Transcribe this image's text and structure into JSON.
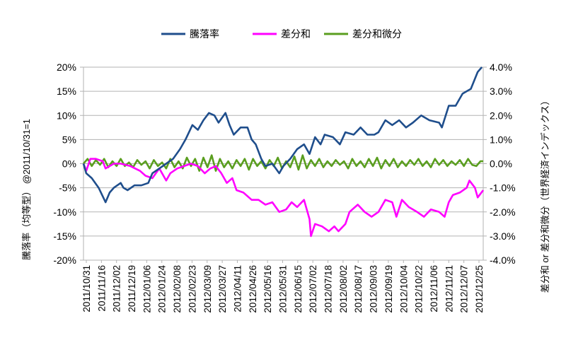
{
  "chart_data": {
    "type": "line",
    "title": "",
    "legend_position": "top",
    "grid": true,
    "xlabel": "",
    "ylabel_left": "騰落率（均等型） @2011/10/31=1",
    "ylabel_right": "差分和 or 差分和微分（世界経済インデックス）",
    "x_unit": "trading days since 2011/10/31",
    "xlim": [
      0,
      290
    ],
    "x_tick_labels": [
      "2011/10/31",
      "2011/11/16",
      "2011/12/02",
      "2011/12/19",
      "2012/01/06",
      "2012/01/24",
      "2012/02/08",
      "2012/02/23",
      "2012/03/09",
      "2012/03/27",
      "2012/04/11",
      "2012/04/26",
      "2012/05/16",
      "2012/05/31",
      "2012/06/15",
      "2012/07/02",
      "2012/07/18",
      "2012/08/02",
      "2012/08/17",
      "2012/09/03",
      "2012/09/19",
      "2012/10/04",
      "2012/10/22",
      "2012/11/06",
      "2012/11/21",
      "2012/12/07",
      "2012/12/25"
    ],
    "ylim_left": [
      -20,
      20
    ],
    "y_ticks_left": [
      "20%",
      "15%",
      "10%",
      "5%",
      "0%",
      "-5%",
      "-10%",
      "-15%",
      "-20%"
    ],
    "ylim_right": [
      -4,
      4
    ],
    "y_ticks_right": [
      "4.0%",
      "3.0%",
      "2.0%",
      "1.0%",
      "0.0%",
      "-1.0%",
      "-2.0%",
      "-3.0%",
      "-4.0%"
    ],
    "series": [
      {
        "name": "騰落率",
        "axis": "left",
        "color": "#1f4e8c",
        "points": [
          [
            0,
            0
          ],
          [
            2,
            -2
          ],
          [
            6,
            -3
          ],
          [
            11,
            -5
          ],
          [
            16,
            -8
          ],
          [
            19,
            -6
          ],
          [
            22,
            -5
          ],
          [
            27,
            -4
          ],
          [
            29,
            -5
          ],
          [
            32,
            -5.5
          ],
          [
            37,
            -4.5
          ],
          [
            42,
            -4.5
          ],
          [
            47,
            -4
          ],
          [
            50,
            -2
          ],
          [
            55,
            -1
          ],
          [
            60,
            0
          ],
          [
            65,
            1
          ],
          [
            70,
            3
          ],
          [
            74,
            5
          ],
          [
            79,
            8
          ],
          [
            83,
            7
          ],
          [
            87,
            9
          ],
          [
            91,
            10.5
          ],
          [
            95,
            10
          ],
          [
            98,
            8.5
          ],
          [
            103,
            10.5
          ],
          [
            106,
            8
          ],
          [
            109,
            6
          ],
          [
            114,
            7.5
          ],
          [
            119,
            7.5
          ],
          [
            122,
            5
          ],
          [
            125,
            4
          ],
          [
            129,
            1
          ],
          [
            132,
            -0.5
          ],
          [
            137,
            0
          ],
          [
            142,
            -2
          ],
          [
            145,
            -0.5
          ],
          [
            150,
            1
          ],
          [
            155,
            3
          ],
          [
            160,
            4
          ],
          [
            164,
            2
          ],
          [
            168,
            5.5
          ],
          [
            172,
            4
          ],
          [
            175,
            6
          ],
          [
            181,
            5.5
          ],
          [
            186,
            4
          ],
          [
            190,
            6.5
          ],
          [
            196,
            6
          ],
          [
            201,
            7.5
          ],
          [
            206,
            6
          ],
          [
            211,
            6
          ],
          [
            214,
            6.5
          ],
          [
            219,
            9
          ],
          [
            224,
            8
          ],
          [
            229,
            9
          ],
          [
            234,
            7.5
          ],
          [
            239,
            8.5
          ],
          [
            245,
            10
          ],
          [
            251,
            9
          ],
          [
            258,
            8.5
          ],
          [
            260,
            7.5
          ],
          [
            265,
            12
          ],
          [
            270,
            12
          ],
          [
            275,
            14.5
          ],
          [
            281,
            15.5
          ],
          [
            286,
            19
          ],
          [
            289,
            20
          ]
        ]
      },
      {
        "name": "差分和",
        "axis": "right",
        "color": "#ff00ff",
        "points": [
          [
            0,
            0
          ],
          [
            2,
            -0.3
          ],
          [
            5,
            0.2
          ],
          [
            9,
            0.2
          ],
          [
            14,
            0.1
          ],
          [
            16,
            -0.2
          ],
          [
            22,
            0
          ],
          [
            27,
            0
          ],
          [
            34,
            -0.1
          ],
          [
            41,
            -0.3
          ],
          [
            45,
            -0.5
          ],
          [
            50,
            -0.6
          ],
          [
            55,
            -0.2
          ],
          [
            60,
            -0.7
          ],
          [
            63,
            -0.4
          ],
          [
            68,
            -0.2
          ],
          [
            73,
            -0.1
          ],
          [
            78,
            0
          ],
          [
            83,
            -0.1
          ],
          [
            88,
            -0.4
          ],
          [
            92,
            -0.2
          ],
          [
            96,
            -0.1
          ],
          [
            100,
            -0.4
          ],
          [
            104,
            -0.8
          ],
          [
            108,
            -0.6
          ],
          [
            111,
            -1.1
          ],
          [
            116,
            -1.2
          ],
          [
            122,
            -1.5
          ],
          [
            127,
            -1.5
          ],
          [
            132,
            -1.7
          ],
          [
            137,
            -1.6
          ],
          [
            142,
            -2.0
          ],
          [
            147,
            -1.9
          ],
          [
            151,
            -1.6
          ],
          [
            155,
            -1.8
          ],
          [
            160,
            -1.5
          ],
          [
            164,
            -2.3
          ],
          [
            165,
            -3.0
          ],
          [
            168,
            -2.5
          ],
          [
            173,
            -2.6
          ],
          [
            178,
            -2.8
          ],
          [
            182,
            -2.6
          ],
          [
            185,
            -2.8
          ],
          [
            190,
            -2.5
          ],
          [
            193,
            -2.0
          ],
          [
            199,
            -1.7
          ],
          [
            204,
            -2.0
          ],
          [
            209,
            -2.2
          ],
          [
            214,
            -2.0
          ],
          [
            219,
            -1.5
          ],
          [
            224,
            -1.6
          ],
          [
            227,
            -2.2
          ],
          [
            231,
            -1.5
          ],
          [
            236,
            -1.8
          ],
          [
            242,
            -2.0
          ],
          [
            247,
            -2.2
          ],
          [
            252,
            -1.9
          ],
          [
            258,
            -2.0
          ],
          [
            262,
            -2.2
          ],
          [
            265,
            -1.6
          ],
          [
            268,
            -1.3
          ],
          [
            273,
            -1.2
          ],
          [
            278,
            -1.0
          ],
          [
            280,
            -0.7
          ],
          [
            284,
            -1.0
          ],
          [
            286,
            -1.4
          ],
          [
            290,
            -1.1
          ]
        ]
      },
      {
        "name": "差分和微分",
        "axis": "right",
        "color": "#5a9e1f",
        "points": [
          [
            0,
            0
          ],
          [
            3,
            0.2
          ],
          [
            6,
            -0.1
          ],
          [
            9,
            0.15
          ],
          [
            12,
            -0.05
          ],
          [
            15,
            0.2
          ],
          [
            18,
            -0.15
          ],
          [
            21,
            0.1
          ],
          [
            24,
            -0.1
          ],
          [
            27,
            0.2
          ],
          [
            30,
            -0.1
          ],
          [
            33,
            0.05
          ],
          [
            36,
            -0.15
          ],
          [
            39,
            0.15
          ],
          [
            42,
            -0.05
          ],
          [
            45,
            0.1
          ],
          [
            48,
            -0.2
          ],
          [
            51,
            0.15
          ],
          [
            54,
            -0.1
          ],
          [
            57,
            0.05
          ],
          [
            60,
            -0.2
          ],
          [
            63,
            0.2
          ],
          [
            66,
            -0.15
          ],
          [
            69,
            0.1
          ],
          [
            72,
            -0.2
          ],
          [
            75,
            0.25
          ],
          [
            78,
            -0.1
          ],
          [
            81,
            0.2
          ],
          [
            84,
            -0.3
          ],
          [
            87,
            0.25
          ],
          [
            90,
            -0.15
          ],
          [
            93,
            0.35
          ],
          [
            96,
            -0.3
          ],
          [
            99,
            0.2
          ],
          [
            102,
            -0.15
          ],
          [
            105,
            0.1
          ],
          [
            108,
            -0.2
          ],
          [
            111,
            0.15
          ],
          [
            114,
            -0.1
          ],
          [
            117,
            0.2
          ],
          [
            120,
            -0.25
          ],
          [
            123,
            0.2
          ],
          [
            126,
            -0.1
          ],
          [
            129,
            0.1
          ],
          [
            132,
            -0.2
          ],
          [
            135,
            0.15
          ],
          [
            138,
            -0.1
          ],
          [
            141,
            0.25
          ],
          [
            144,
            -0.2
          ],
          [
            147,
            0.1
          ],
          [
            150,
            -0.15
          ],
          [
            153,
            0.3
          ],
          [
            156,
            -0.25
          ],
          [
            159,
            0.35
          ],
          [
            162,
            -0.2
          ],
          [
            165,
            0.15
          ],
          [
            168,
            -0.1
          ],
          [
            171,
            0.2
          ],
          [
            174,
            -0.15
          ],
          [
            177,
            0.1
          ],
          [
            180,
            -0.1
          ],
          [
            183,
            0.15
          ],
          [
            186,
            -0.05
          ],
          [
            189,
            0.1
          ],
          [
            192,
            -0.2
          ],
          [
            195,
            0.2
          ],
          [
            198,
            -0.1
          ],
          [
            201,
            0.1
          ],
          [
            204,
            -0.15
          ],
          [
            207,
            0.2
          ],
          [
            210,
            -0.1
          ],
          [
            213,
            0.25
          ],
          [
            216,
            -0.2
          ],
          [
            219,
            0.15
          ],
          [
            222,
            -0.1
          ],
          [
            225,
            0.2
          ],
          [
            228,
            -0.15
          ],
          [
            231,
            0.1
          ],
          [
            234,
            -0.1
          ],
          [
            237,
            0.15
          ],
          [
            240,
            -0.05
          ],
          [
            243,
            0.2
          ],
          [
            246,
            -0.1
          ],
          [
            249,
            0.1
          ],
          [
            252,
            -0.15
          ],
          [
            255,
            0.2
          ],
          [
            258,
            -0.05
          ],
          [
            261,
            0.15
          ],
          [
            264,
            -0.1
          ],
          [
            267,
            0.1
          ],
          [
            270,
            -0.05
          ],
          [
            273,
            0.15
          ],
          [
            276,
            -0.1
          ],
          [
            279,
            0.2
          ],
          [
            282,
            -0.05
          ],
          [
            285,
            -0.1
          ],
          [
            288,
            0.1
          ],
          [
            290,
            0.1
          ]
        ]
      }
    ]
  }
}
